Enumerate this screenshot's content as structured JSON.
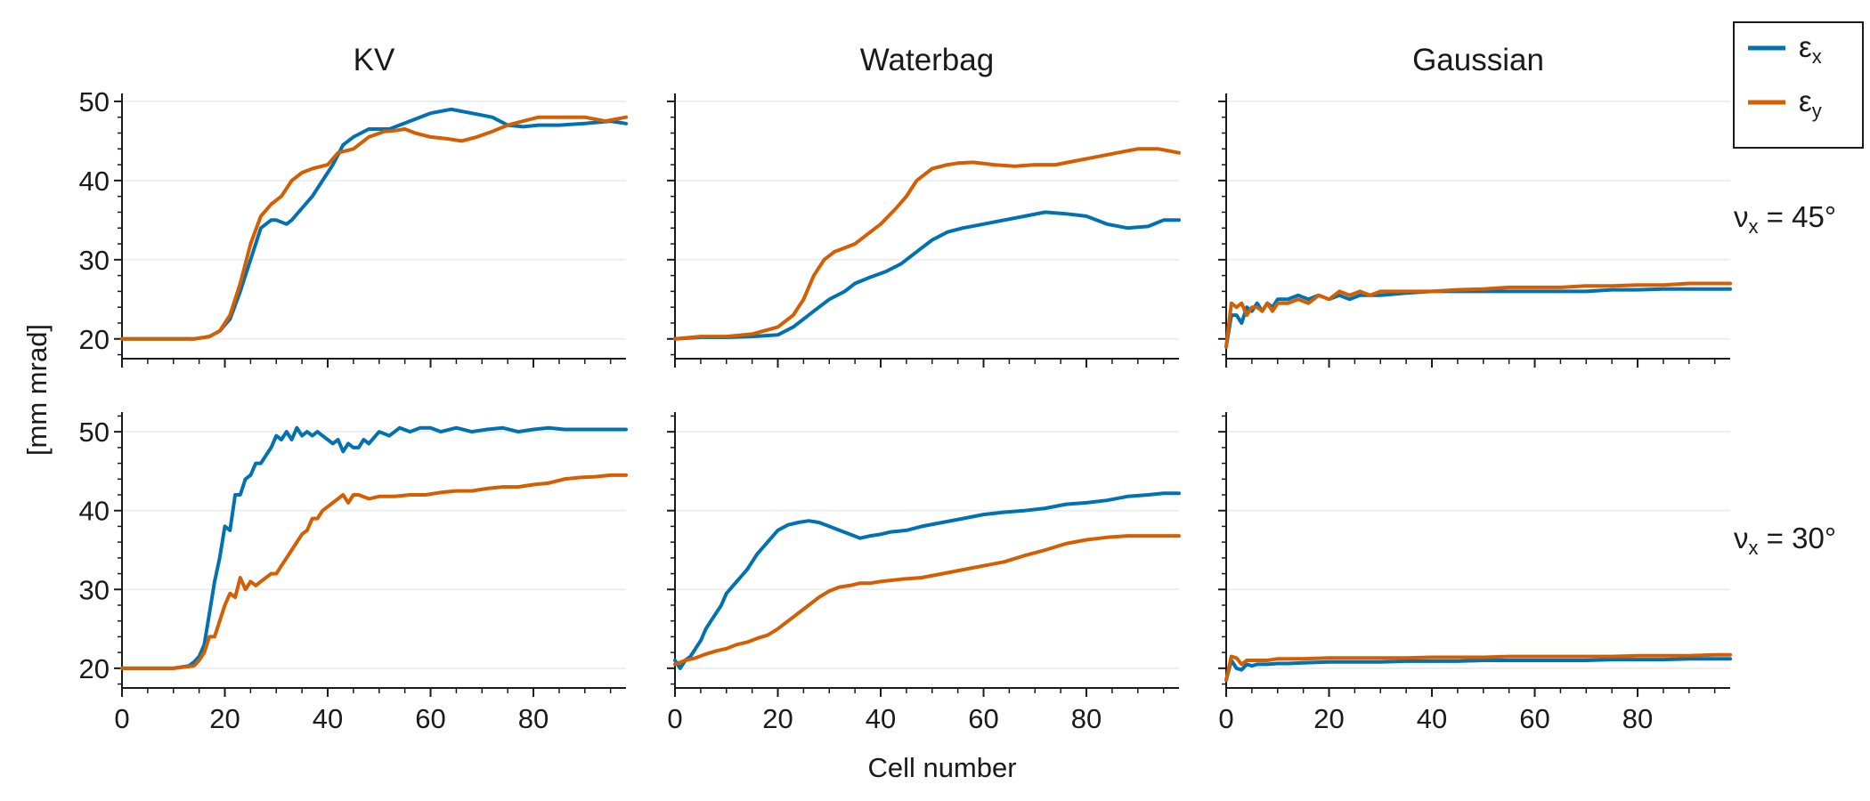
{
  "chart_data": {
    "type": "line",
    "xlabel": "Cell number",
    "ylabel": "[mm mrad]",
    "xlim": [
      0,
      98
    ],
    "xticks": [
      0,
      20,
      40,
      60,
      80
    ],
    "rows": [
      {
        "label_base": "ν",
        "label_sub": "x",
        "label_tail": " = 45°",
        "ylim": [
          17.5,
          51
        ],
        "yticks": [
          20,
          30,
          40,
          50
        ]
      },
      {
        "label_base": "ν",
        "label_sub": "x",
        "label_tail": " = 30°",
        "ylim": [
          17.5,
          52.5
        ],
        "yticks": [
          20,
          30,
          40,
          50
        ]
      }
    ],
    "columns": [
      "KV",
      "Waterbag",
      "Gaussian"
    ],
    "legend": {
      "placement": "top-right",
      "entries": [
        {
          "base": "ε",
          "sub": "x",
          "color": "#0072B2"
        },
        {
          "base": "ε",
          "sub": "y",
          "color": "#D55E00"
        }
      ]
    },
    "panels": [
      {
        "row": 0,
        "col": 0,
        "series": [
          {
            "label": "εx",
            "x": [
              0,
              10,
              14,
              17,
              19,
              21,
              23,
              25,
              27,
              29,
              30,
              32,
              33,
              35,
              37,
              39,
              41,
              43,
              45,
              48,
              52,
              56,
              60,
              64,
              68,
              72,
              75,
              78,
              81,
              85,
              90,
              95,
              98
            ],
            "y": [
              20,
              20,
              20,
              20.3,
              21,
              22.5,
              26,
              30,
              34,
              35,
              35,
              34.5,
              35,
              36.5,
              38,
              40,
              42,
              44.5,
              45.5,
              46.5,
              46.5,
              47.5,
              48.5,
              49,
              48.5,
              48,
              47,
              46.8,
              47,
              47,
              47.2,
              47.5,
              47.2
            ]
          },
          {
            "label": "εy",
            "x": [
              0,
              10,
              14,
              17,
              19,
              21,
              23,
              25,
              27,
              29,
              31,
              33,
              35,
              37,
              40,
              42,
              45,
              48,
              51,
              53,
              55,
              57,
              60,
              63,
              66,
              69,
              72,
              75,
              78,
              81,
              85,
              90,
              94,
              98
            ],
            "y": [
              20,
              20,
              20,
              20.3,
              21,
              23,
              27,
              32,
              35.5,
              37,
              38,
              40,
              41,
              41.5,
              42,
              43.5,
              44,
              45.5,
              46.2,
              46.3,
              46.5,
              46,
              45.5,
              45.3,
              45,
              45.5,
              46.2,
              47,
              47.5,
              48,
              48,
              48,
              47.5,
              48
            ]
          }
        ]
      },
      {
        "row": 0,
        "col": 1,
        "series": [
          {
            "label": "εx",
            "x": [
              0,
              5,
              10,
              15,
              20,
              23,
              25,
              27,
              30,
              33,
              35,
              38,
              41,
              44,
              47,
              50,
              53,
              56,
              60,
              64,
              68,
              72,
              76,
              80,
              84,
              88,
              92,
              95,
              98
            ],
            "y": [
              20,
              20.2,
              20.2,
              20.3,
              20.5,
              21.5,
              22.5,
              23.5,
              25,
              26,
              27,
              27.8,
              28.5,
              29.5,
              31,
              32.5,
              33.5,
              34,
              34.5,
              35,
              35.5,
              36,
              35.8,
              35.5,
              34.5,
              34,
              34.2,
              35,
              35
            ]
          },
          {
            "label": "εy",
            "x": [
              0,
              5,
              10,
              15,
              20,
              23,
              25,
              27,
              29,
              31,
              33,
              35,
              37,
              40,
              43,
              45,
              47,
              50,
              53,
              55,
              58,
              62,
              66,
              70,
              74,
              78,
              82,
              86,
              90,
              94,
              98
            ],
            "y": [
              20,
              20.3,
              20.3,
              20.6,
              21.5,
              23,
              25,
              28,
              30,
              31,
              31.5,
              32,
              33,
              34.5,
              36.5,
              38,
              40,
              41.5,
              42,
              42.2,
              42.3,
              42,
              41.8,
              42,
              42,
              42.5,
              43,
              43.5,
              44,
              44,
              43.5
            ]
          }
        ]
      },
      {
        "row": 0,
        "col": 2,
        "series": [
          {
            "label": "εx",
            "x": [
              0,
              1,
              2,
              3,
              4,
              5,
              6,
              7,
              8,
              9,
              10,
              12,
              14,
              16,
              18,
              20,
              22,
              24,
              26,
              28,
              30,
              35,
              40,
              45,
              50,
              55,
              60,
              65,
              70,
              75,
              80,
              85,
              90,
              95,
              98
            ],
            "y": [
              19,
              23,
              23,
              22,
              24,
              23.5,
              24.5,
              23.5,
              24.5,
              24,
              25,
              25,
              25.5,
              25,
              25.5,
              25,
              25.5,
              25,
              25.5,
              25.5,
              25.5,
              25.8,
              26,
              26,
              26,
              26,
              26,
              26,
              26,
              26.2,
              26.2,
              26.3,
              26.3,
              26.3,
              26.3
            ]
          },
          {
            "label": "εy",
            "x": [
              0,
              1,
              2,
              3,
              4,
              5,
              6,
              7,
              8,
              9,
              10,
              12,
              14,
              16,
              18,
              20,
              22,
              24,
              26,
              28,
              30,
              35,
              40,
              45,
              50,
              55,
              60,
              65,
              70,
              75,
              80,
              85,
              90,
              95,
              98
            ],
            "y": [
              19,
              24.5,
              24,
              24.5,
              23,
              24,
              24,
              23.5,
              24.5,
              23.5,
              24.5,
              24.5,
              25,
              24.5,
              25.5,
              25,
              26,
              25.5,
              26,
              25.5,
              26,
              26,
              26,
              26.2,
              26.3,
              26.5,
              26.5,
              26.5,
              26.7,
              26.7,
              26.8,
              26.8,
              27,
              27,
              27
            ]
          }
        ]
      },
      {
        "row": 1,
        "col": 0,
        "series": [
          {
            "label": "εx",
            "x": [
              0,
              10,
              13,
              14,
              15,
              16,
              17,
              18,
              19,
              20,
              21,
              22,
              23,
              24,
              25,
              26,
              27,
              28,
              29,
              30,
              31,
              32,
              33,
              34,
              35,
              36,
              37,
              38,
              39,
              40,
              41,
              42,
              43,
              44,
              45,
              46,
              47,
              48,
              50,
              52,
              54,
              56,
              58,
              60,
              62,
              65,
              68,
              71,
              74,
              77,
              80,
              83,
              86,
              89,
              92,
              95,
              98
            ],
            "y": [
              20,
              20,
              20.3,
              20.8,
              21.5,
              23,
              27,
              31,
              34,
              38,
              37.5,
              42,
              42,
              44,
              44.5,
              46,
              46,
              47,
              48,
              49.5,
              49,
              50,
              49,
              50.5,
              49.5,
              50,
              49.5,
              50,
              49.5,
              49,
              48.5,
              49,
              47.5,
              48.5,
              48,
              48,
              49,
              48.5,
              50,
              49.5,
              50.5,
              50,
              50.5,
              50.5,
              50,
              50.5,
              50,
              50.3,
              50.5,
              50,
              50.3,
              50.5,
              50.3,
              50.3,
              50.3,
              50.3,
              50.3
            ]
          },
          {
            "label": "εy",
            "x": [
              0,
              10,
              14,
              15,
              16,
              17,
              18,
              19,
              20,
              21,
              22,
              23,
              24,
              25,
              26,
              27,
              28,
              29,
              30,
              31,
              32,
              33,
              34,
              35,
              36,
              37,
              38,
              39,
              40,
              41,
              42,
              43,
              44,
              45,
              46,
              48,
              50,
              53,
              56,
              59,
              62,
              65,
              68,
              71,
              74,
              77,
              80,
              83,
              86,
              89,
              92,
              95,
              98
            ],
            "y": [
              20,
              20,
              20.3,
              21,
              22,
              24,
              24,
              26,
              28,
              29.5,
              29,
              31.5,
              30,
              31,
              30.5,
              31,
              31.5,
              32,
              32,
              33,
              34,
              35,
              36,
              37,
              37.5,
              39,
              39,
              40,
              40.5,
              41,
              41.5,
              42,
              41,
              42,
              42,
              41.5,
              41.8,
              41.8,
              42,
              42,
              42.3,
              42.5,
              42.5,
              42.8,
              43,
              43,
              43.3,
              43.5,
              44,
              44.2,
              44.3,
              44.5,
              44.5
            ]
          }
        ]
      },
      {
        "row": 1,
        "col": 1,
        "series": [
          {
            "label": "εx",
            "x": [
              0,
              1,
              2,
              3,
              4,
              5,
              6,
              7,
              8,
              9,
              10,
              12,
              14,
              16,
              18,
              20,
              22,
              24,
              26,
              28,
              30,
              32,
              34,
              36,
              38,
              40,
              42,
              45,
              48,
              52,
              56,
              60,
              64,
              68,
              72,
              76,
              80,
              84,
              88,
              92,
              95,
              98
            ],
            "y": [
              21,
              20,
              21,
              21.5,
              22.5,
              23.5,
              25,
              26,
              27,
              28,
              29.5,
              31,
              32.5,
              34.5,
              36,
              37.5,
              38.2,
              38.5,
              38.7,
              38.5,
              38,
              37.5,
              37,
              36.5,
              36.8,
              37,
              37.3,
              37.5,
              38,
              38.5,
              39,
              39.5,
              39.8,
              40,
              40.3,
              40.8,
              41,
              41.3,
              41.8,
              42,
              42.2,
              42.2
            ]
          },
          {
            "label": "εy",
            "x": [
              0,
              2,
              4,
              6,
              8,
              10,
              12,
              14,
              16,
              18,
              20,
              22,
              24,
              26,
              28,
              30,
              32,
              34,
              36,
              38,
              40,
              44,
              48,
              52,
              56,
              60,
              64,
              68,
              72,
              76,
              80,
              84,
              88,
              92,
              95,
              98
            ],
            "y": [
              20.5,
              21,
              21.3,
              21.8,
              22.2,
              22.5,
              23,
              23.3,
              23.8,
              24.2,
              25,
              26,
              27,
              28,
              29,
              29.8,
              30.3,
              30.5,
              30.8,
              30.8,
              31,
              31.3,
              31.5,
              32,
              32.5,
              33,
              33.5,
              34.3,
              35,
              35.8,
              36.3,
              36.6,
              36.8,
              36.8,
              36.8,
              36.8
            ]
          }
        ]
      },
      {
        "row": 1,
        "col": 2,
        "series": [
          {
            "label": "εx",
            "x": [
              0,
              1,
              2,
              3,
              4,
              5,
              6,
              8,
              10,
              12,
              15,
              20,
              25,
              30,
              35,
              40,
              45,
              50,
              55,
              60,
              65,
              70,
              75,
              80,
              85,
              90,
              95,
              98
            ],
            "y": [
              18.5,
              21,
              20,
              19.8,
              20.5,
              20.3,
              20.5,
              20.5,
              20.6,
              20.6,
              20.7,
              20.8,
              20.8,
              20.8,
              20.9,
              20.9,
              20.9,
              21,
              21,
              21,
              21,
              21,
              21.1,
              21.1,
              21.1,
              21.2,
              21.2,
              21.2
            ]
          },
          {
            "label": "εy",
            "x": [
              0,
              1,
              2,
              3,
              4,
              5,
              6,
              8,
              10,
              12,
              15,
              20,
              25,
              30,
              35,
              40,
              45,
              50,
              55,
              60,
              65,
              70,
              75,
              80,
              85,
              90,
              95,
              98
            ],
            "y": [
              18.5,
              21.5,
              21.3,
              20.5,
              21,
              21,
              21,
              21,
              21.2,
              21.2,
              21.2,
              21.3,
              21.3,
              21.3,
              21.3,
              21.4,
              21.4,
              21.4,
              21.5,
              21.5,
              21.5,
              21.5,
              21.5,
              21.6,
              21.6,
              21.6,
              21.7,
              21.7
            ]
          }
        ]
      }
    ]
  }
}
